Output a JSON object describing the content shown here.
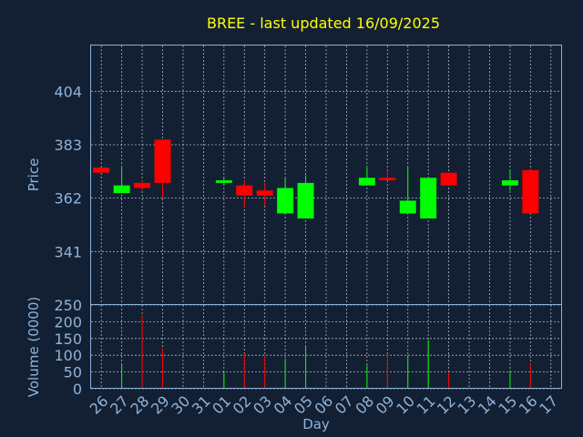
{
  "chart_data": {
    "type": "candlestick",
    "title": "BREE - last updated 16/09/2025",
    "xlabel": "Day",
    "price_panel": {
      "ylabel": "Price",
      "ylim": [
        320,
        422
      ],
      "yticks": [
        341,
        362,
        383,
        404
      ]
    },
    "volume_panel": {
      "ylabel": "Volume (0000)",
      "ylim": [
        0,
        250
      ],
      "yticks": [
        0,
        50,
        100,
        150,
        200,
        250
      ]
    },
    "x_ticks": [
      "26",
      "27",
      "28",
      "29",
      "30",
      "31",
      "01",
      "02",
      "03",
      "04",
      "05",
      "06",
      "07",
      "08",
      "09",
      "10",
      "11",
      "12",
      "13",
      "14",
      "15",
      "16",
      "17"
    ],
    "candles": [
      {
        "day": "26",
        "open": 374,
        "close": 372,
        "high": 374,
        "low": 372,
        "volume": 0
      },
      {
        "day": "27",
        "open": 364,
        "close": 367,
        "high": 374,
        "low": 364,
        "volume": 75
      },
      {
        "day": "28",
        "open": 368,
        "close": 366,
        "high": 369,
        "low": 365,
        "volume": 220
      },
      {
        "day": "29",
        "open": 385,
        "close": 368,
        "high": 385,
        "low": 362,
        "volume": 120
      },
      {
        "day": "01",
        "open": 368,
        "close": 369,
        "high": 370,
        "low": 367,
        "volume": 50
      },
      {
        "day": "02",
        "open": 367,
        "close": 363,
        "high": 369,
        "low": 358,
        "volume": 105
      },
      {
        "day": "03",
        "open": 365,
        "close": 363,
        "high": 368,
        "low": 359,
        "volume": 100
      },
      {
        "day": "04",
        "open": 356,
        "close": 366,
        "high": 370,
        "low": 356,
        "volume": 90
      },
      {
        "day": "05",
        "open": 354,
        "close": 368,
        "high": 371,
        "low": 354,
        "volume": 130
      },
      {
        "day": "08",
        "open": 367,
        "close": 370,
        "high": 374,
        "low": 367,
        "volume": 70
      },
      {
        "day": "09",
        "open": 370,
        "close": 369,
        "high": 373,
        "low": 369,
        "volume": 105
      },
      {
        "day": "10",
        "open": 356,
        "close": 361,
        "high": 374,
        "low": 356,
        "volume": 100
      },
      {
        "day": "11",
        "open": 354,
        "close": 370,
        "high": 370,
        "low": 354,
        "volume": 145
      },
      {
        "day": "12",
        "open": 372,
        "close": 367,
        "high": 372,
        "low": 367,
        "volume": 50
      },
      {
        "day": "15",
        "open": 367,
        "close": 369,
        "high": 373,
        "low": 365,
        "volume": 55
      },
      {
        "day": "16",
        "open": 373,
        "close": 356,
        "high": 373,
        "low": 356,
        "volume": 75
      }
    ],
    "colors": {
      "background": "#132033",
      "up": "#00ff00",
      "down": "#ff0000",
      "title": "#ffff00",
      "axis_text": "#8fb3d9",
      "grid": "#dde6ef"
    },
    "grid": true
  }
}
